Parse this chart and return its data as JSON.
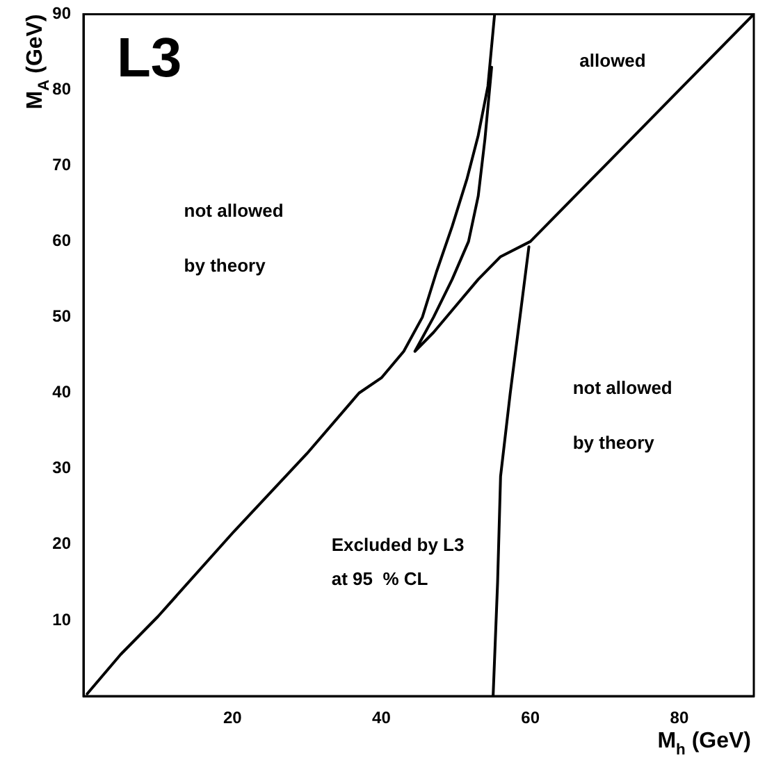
{
  "chart_data": {
    "type": "line",
    "title": "L3",
    "xlabel": "M$_{h}$ (GeV)",
    "ylabel": "M$_{A}$ (GeV)",
    "xlim": [
      0,
      90
    ],
    "ylim": [
      0,
      90
    ],
    "xticks": [
      20,
      40,
      60,
      80
    ],
    "yticks": [
      10,
      20,
      30,
      40,
      50,
      60,
      70,
      80,
      90
    ],
    "grid": false,
    "legend": false,
    "marker": "none",
    "line_style": "solid",
    "series": [
      {
        "color": "#000000",
        "x": [
          0.5,
          5,
          10,
          20,
          30,
          37,
          40,
          43,
          45.5,
          47.4,
          49.5,
          51.5,
          53,
          54.3,
          55.2
        ],
        "values": [
          0.3,
          5.5,
          10.5,
          21.5,
          32,
          40,
          42,
          45.5,
          50,
          56,
          62,
          68.3,
          74,
          80.5,
          90
        ]
      },
      {
        "color": "#000000",
        "x": [
          90,
          80,
          70,
          60,
          56,
          53,
          50,
          47,
          44.5,
          47,
          49.5,
          51.7,
          53,
          53.9,
          54.8
        ],
        "values": [
          90,
          80,
          70,
          60,
          58,
          55,
          51.5,
          48,
          45.5,
          50,
          55,
          60,
          66,
          73.5,
          83
        ]
      },
      {
        "color": "#000000",
        "x": [
          55,
          55.6,
          56,
          57.3,
          58.6,
          59.8
        ],
        "values": [
          0,
          15,
          29,
          40,
          50,
          59.3
        ]
      }
    ],
    "annotations": [
      "allowed",
      "not allowed",
      "by theory",
      "not allowed",
      "by theory",
      "Excluded by L3",
      "at 95  % CL"
    ]
  }
}
